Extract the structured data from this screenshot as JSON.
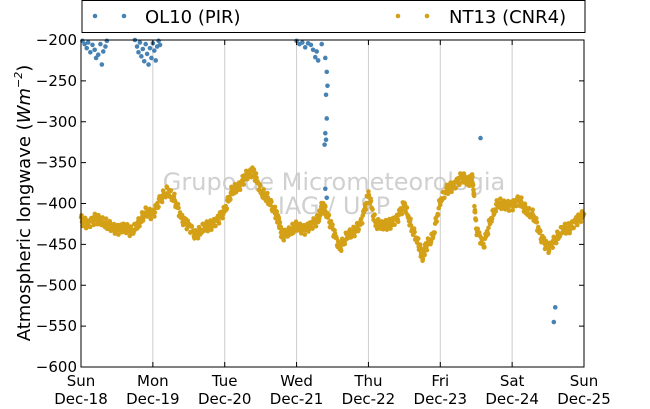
{
  "chart_data": {
    "type": "scatter",
    "ylabel": "Atmospheric longwave (W m^-2)",
    "ylabel_main": "Atmospheric longwave",
    "ylabel_unit_base": "Wm",
    "ylabel_unit_exp": "−2",
    "ylim": [
      -600,
      -200
    ],
    "yticks": [
      -200,
      -250,
      -300,
      -350,
      -400,
      -450,
      -500,
      -550,
      -600
    ],
    "ytick_labels": [
      "−200",
      "−250",
      "−300",
      "−350",
      "−400",
      "−450",
      "−500",
      "−550",
      "−600"
    ],
    "xlim": [
      0,
      7
    ],
    "xticks": [
      {
        "value": 0,
        "day": "Sun",
        "date": "Dec-18"
      },
      {
        "value": 1,
        "day": "Mon",
        "date": "Dec-19"
      },
      {
        "value": 2,
        "day": "Tue",
        "date": "Dec-20"
      },
      {
        "value": 3,
        "day": "Wed",
        "date": "Dec-21"
      },
      {
        "value": 4,
        "day": "Thu",
        "date": "Dec-22"
      },
      {
        "value": 5,
        "day": "Fri",
        "date": "Dec-23"
      },
      {
        "value": 6,
        "day": "Sat",
        "date": "Dec-24"
      },
      {
        "value": 7,
        "day": "Sun",
        "date": "Dec-25"
      }
    ],
    "grid": "vertical",
    "legend_position": "top",
    "series": [
      {
        "name": "OL10 (PIR)",
        "color": "#4682b4",
        "points": [
          [
            0.02,
            -201
          ],
          [
            0.05,
            -205
          ],
          [
            0.08,
            -210
          ],
          [
            0.1,
            -203
          ],
          [
            0.13,
            -215
          ],
          [
            0.16,
            -206
          ],
          [
            0.19,
            -212
          ],
          [
            0.21,
            -222
          ],
          [
            0.24,
            -218
          ],
          [
            0.27,
            -205
          ],
          [
            0.29,
            -230
          ],
          [
            0.31,
            -214
          ],
          [
            0.34,
            -208
          ],
          [
            0.36,
            -201
          ],
          [
            0.75,
            -200
          ],
          [
            0.78,
            -208
          ],
          [
            0.8,
            -215
          ],
          [
            0.82,
            -203
          ],
          [
            0.84,
            -220
          ],
          [
            0.86,
            -211
          ],
          [
            0.88,
            -226
          ],
          [
            0.9,
            -205
          ],
          [
            0.92,
            -217
          ],
          [
            0.94,
            -230
          ],
          [
            0.96,
            -210
          ],
          [
            0.98,
            -222
          ],
          [
            1.0,
            -204
          ],
          [
            1.02,
            -213
          ],
          [
            1.04,
            -225
          ],
          [
            1.06,
            -208
          ],
          [
            1.08,
            -201
          ],
          [
            1.1,
            -206
          ],
          [
            3.0,
            -201
          ],
          [
            3.04,
            -205
          ],
          [
            3.08,
            -203
          ],
          [
            3.12,
            -209
          ],
          [
            3.16,
            -204
          ],
          [
            3.2,
            -206
          ],
          [
            3.23,
            -212
          ],
          [
            3.26,
            -221
          ],
          [
            3.28,
            -214
          ],
          [
            3.3,
            -225
          ],
          [
            3.35,
            -205
          ],
          [
            3.4,
            -222
          ],
          [
            3.42,
            -239
          ],
          [
            3.43,
            -256
          ],
          [
            3.41,
            -267
          ],
          [
            3.42,
            -296
          ],
          [
            3.4,
            -314
          ],
          [
            3.41,
            -322
          ],
          [
            3.39,
            -328
          ],
          [
            3.4,
            -382
          ],
          [
            3.42,
            -393
          ],
          [
            5.56,
            -320
          ],
          [
            6.6,
            -527
          ],
          [
            6.58,
            -545
          ]
        ]
      },
      {
        "name": "NT13 (CNR4)",
        "color": "#d4a017",
        "points": [
          [
            0.0,
            -420
          ],
          [
            0.1,
            -425
          ],
          [
            0.2,
            -418
          ],
          [
            0.3,
            -423
          ],
          [
            0.4,
            -428
          ],
          [
            0.5,
            -432
          ],
          [
            0.6,
            -428
          ],
          [
            0.7,
            -435
          ],
          [
            0.8,
            -425
          ],
          [
            0.9,
            -410
          ],
          [
            1.0,
            -413
          ],
          [
            1.1,
            -395
          ],
          [
            1.2,
            -385
          ],
          [
            1.3,
            -395
          ],
          [
            1.4,
            -418
          ],
          [
            1.5,
            -427
          ],
          [
            1.6,
            -440
          ],
          [
            1.7,
            -430
          ],
          [
            1.8,
            -427
          ],
          [
            1.9,
            -420
          ],
          [
            2.0,
            -408
          ],
          [
            2.1,
            -385
          ],
          [
            2.2,
            -380
          ],
          [
            2.3,
            -365
          ],
          [
            2.4,
            -360
          ],
          [
            2.5,
            -385
          ],
          [
            2.6,
            -395
          ],
          [
            2.7,
            -410
          ],
          [
            2.75,
            -420
          ],
          [
            2.8,
            -440
          ],
          [
            2.9,
            -435
          ],
          [
            3.0,
            -428
          ],
          [
            3.1,
            -432
          ],
          [
            3.2,
            -426
          ],
          [
            3.3,
            -420
          ],
          [
            3.35,
            -405
          ],
          [
            3.4,
            -408
          ],
          [
            3.5,
            -430
          ],
          [
            3.6,
            -455
          ],
          [
            3.7,
            -440
          ],
          [
            3.8,
            -435
          ],
          [
            3.9,
            -423
          ],
          [
            4.0,
            -388
          ],
          [
            4.1,
            -425
          ],
          [
            4.2,
            -428
          ],
          [
            4.3,
            -425
          ],
          [
            4.4,
            -418
          ],
          [
            4.5,
            -400
          ],
          [
            4.6,
            -430
          ],
          [
            4.7,
            -450
          ],
          [
            4.75,
            -465
          ],
          [
            4.8,
            -452
          ],
          [
            4.9,
            -440
          ],
          [
            5.0,
            -397
          ],
          [
            5.1,
            -382
          ],
          [
            5.2,
            -377
          ],
          [
            5.3,
            -367
          ],
          [
            5.4,
            -375
          ],
          [
            5.45,
            -370
          ],
          [
            5.5,
            -430
          ],
          [
            5.6,
            -452
          ],
          [
            5.7,
            -420
          ],
          [
            5.8,
            -400
          ],
          [
            5.9,
            -402
          ],
          [
            6.0,
            -402
          ],
          [
            6.1,
            -395
          ],
          [
            6.2,
            -410
          ],
          [
            6.3,
            -415
          ],
          [
            6.4,
            -440
          ],
          [
            6.5,
            -455
          ],
          [
            6.6,
            -445
          ],
          [
            6.7,
            -432
          ],
          [
            6.8,
            -430
          ],
          [
            6.9,
            -420
          ],
          [
            7.0,
            -413
          ]
        ]
      }
    ]
  },
  "watermark": {
    "line1": "Grupo de Micrometeorologia",
    "line2": "IAG / USP"
  }
}
